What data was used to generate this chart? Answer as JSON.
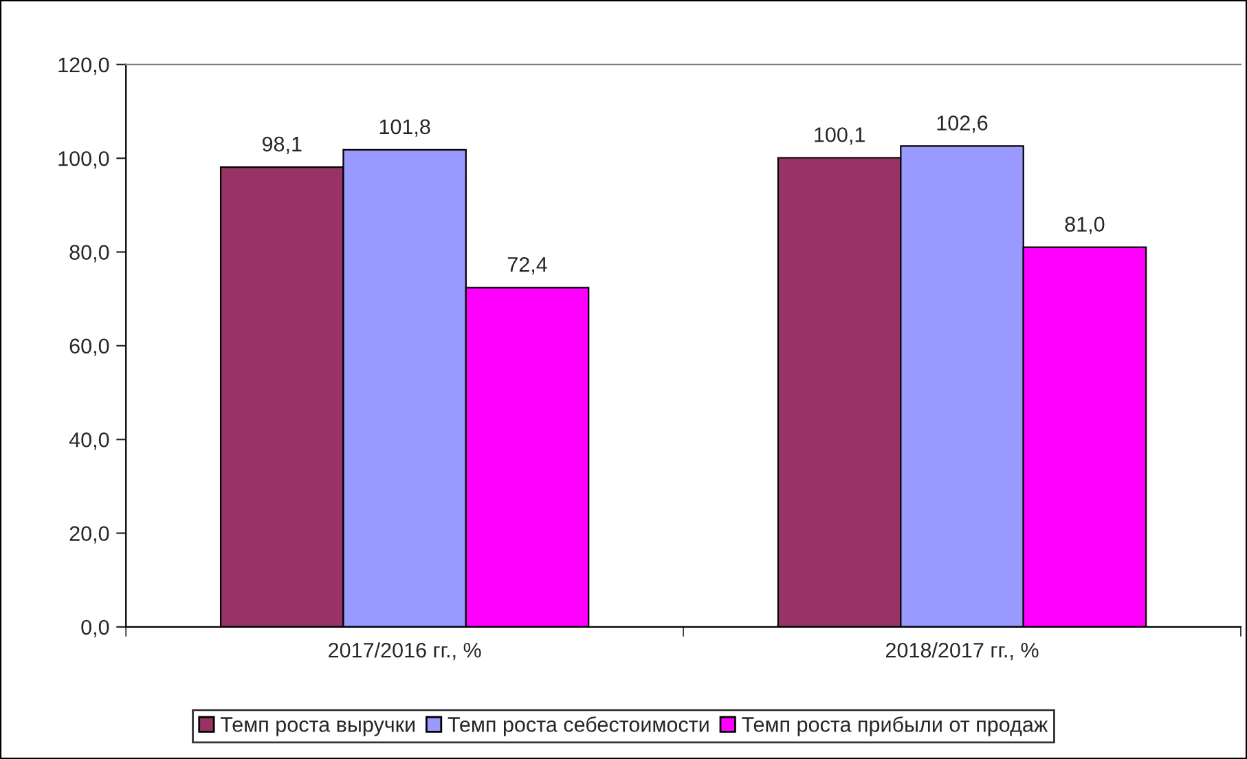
{
  "chart_data": {
    "type": "bar",
    "categories": [
      "2017/2016 гг., %",
      "2018/2017 гг., %"
    ],
    "series": [
      {
        "name": "Темп роста выручки",
        "color": "#993366",
        "values": [
          98.1,
          100.1
        ]
      },
      {
        "name": "Темп роста себестоимости",
        "color": "#9999ff",
        "values": [
          101.8,
          102.6
        ]
      },
      {
        "name": "Темп роста прибыли от продаж",
        "color": "#ff00ff",
        "values": [
          72.4,
          81.0
        ]
      }
    ],
    "ylim": [
      0,
      120
    ],
    "yticks": [
      {
        "value": 0,
        "label": "0,0"
      },
      {
        "value": 20,
        "label": "20,0"
      },
      {
        "value": 40,
        "label": "40,0"
      },
      {
        "value": 60,
        "label": "60,0"
      },
      {
        "value": 80,
        "label": "80,0"
      },
      {
        "value": 100,
        "label": "100,0"
      },
      {
        "value": 120,
        "label": "120,0"
      }
    ],
    "value_labels": [
      [
        "98,1",
        "100,1"
      ],
      [
        "101,8",
        "102,6"
      ],
      [
        "72,4",
        "81,0"
      ]
    ],
    "grid": false,
    "legend": "bottom"
  }
}
